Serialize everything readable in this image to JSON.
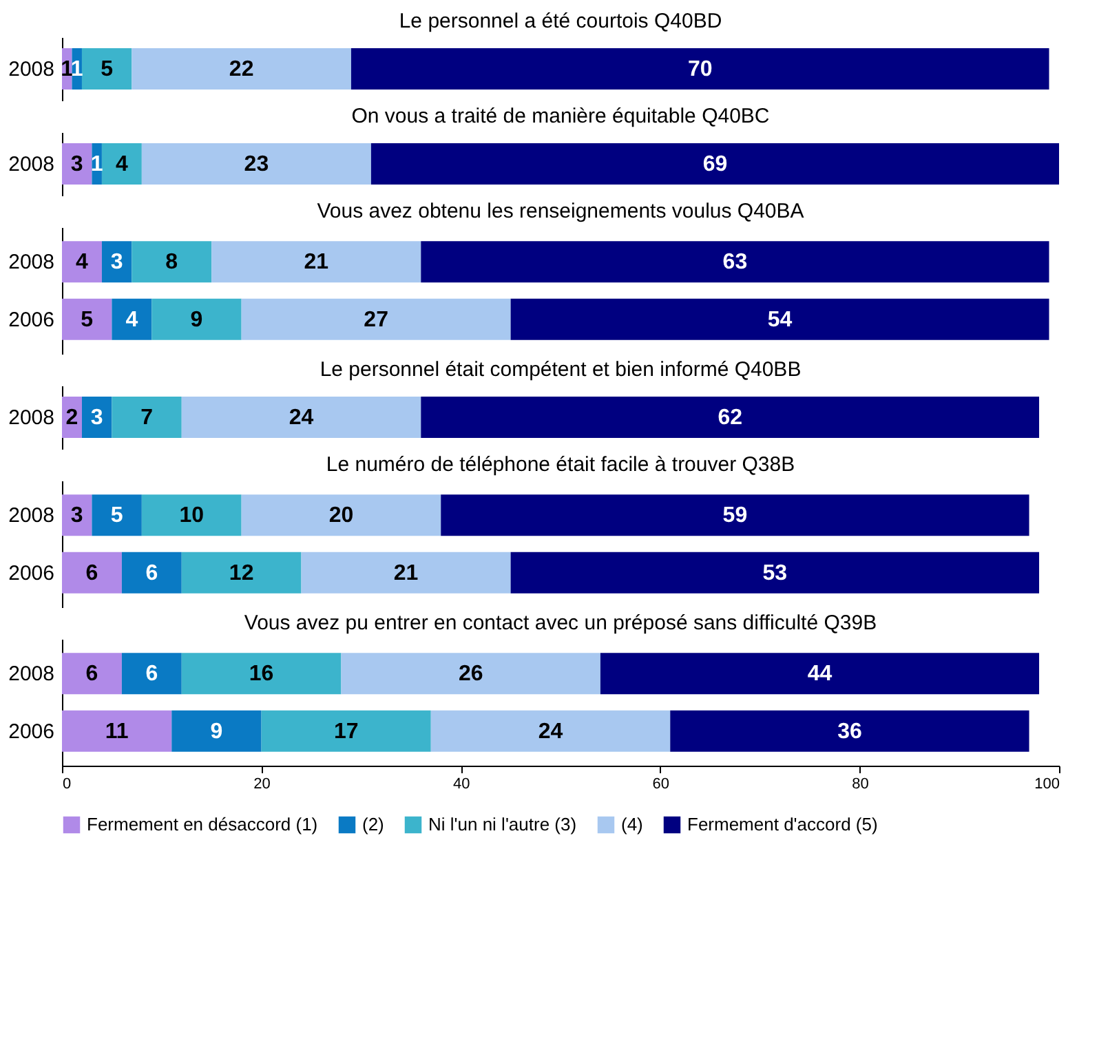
{
  "chart_data": [
    {
      "type": "bar",
      "orientation": "horizontal",
      "stacked": true,
      "title": "Le personnel a été courtois Q40BD",
      "categories": [
        "2008"
      ],
      "xlim": [
        0,
        100
      ],
      "xticks": [
        0,
        20,
        40,
        60,
        80,
        100
      ],
      "tick_labels": "y",
      "data_labels": true,
      "grid": false,
      "series": [
        {
          "color": "#b08ae8",
          "values": [
            1
          ]
        },
        {
          "color": "#0a7ac4",
          "values": [
            1
          ]
        },
        {
          "color": "#3cb4cc",
          "values": [
            5
          ]
        },
        {
          "color": "#a8c8f0",
          "values": [
            22
          ]
        },
        {
          "color": "#000080",
          "values": [
            70
          ]
        }
      ]
    },
    {
      "type": "bar",
      "orientation": "horizontal",
      "stacked": true,
      "title": "On vous a traité de manière équitable Q40BC",
      "categories": [
        "2008"
      ],
      "xlim": [
        0,
        100
      ],
      "xticks": [
        0,
        20,
        40,
        60,
        80,
        100
      ],
      "tick_labels": "y",
      "data_labels": true,
      "grid": false,
      "series": [
        {
          "color": "#b08ae8",
          "values": [
            3
          ]
        },
        {
          "color": "#0a7ac4",
          "values": [
            1
          ]
        },
        {
          "color": "#3cb4cc",
          "values": [
            4
          ]
        },
        {
          "color": "#a8c8f0",
          "values": [
            23
          ]
        },
        {
          "color": "#000080",
          "values": [
            69
          ]
        }
      ]
    },
    {
      "type": "bar",
      "orientation": "horizontal",
      "stacked": true,
      "title": "Vous avez obtenu les renseignements voulus Q40BA",
      "categories": [
        "2008",
        "2006"
      ],
      "xlim": [
        0,
        100
      ],
      "xticks": [
        0,
        20,
        40,
        60,
        80,
        100
      ],
      "tick_labels": "y",
      "data_labels": true,
      "grid": false,
      "series": [
        {
          "color": "#b08ae8",
          "values": [
            4,
            5
          ]
        },
        {
          "color": "#0a7ac4",
          "values": [
            3,
            4
          ]
        },
        {
          "color": "#3cb4cc",
          "values": [
            8,
            9
          ]
        },
        {
          "color": "#a8c8f0",
          "values": [
            21,
            27
          ]
        },
        {
          "color": "#000080",
          "values": [
            63,
            54
          ]
        }
      ]
    },
    {
      "type": "bar",
      "orientation": "horizontal",
      "stacked": true,
      "title": "Le personnel était compétent et bien informé Q40BB",
      "categories": [
        "2008"
      ],
      "xlim": [
        0,
        100
      ],
      "xticks": [
        0,
        20,
        40,
        60,
        80,
        100
      ],
      "tick_labels": "y",
      "data_labels": true,
      "grid": false,
      "series": [
        {
          "color": "#b08ae8",
          "values": [
            2
          ]
        },
        {
          "color": "#0a7ac4",
          "values": [
            3
          ]
        },
        {
          "color": "#3cb4cc",
          "values": [
            7
          ]
        },
        {
          "color": "#a8c8f0",
          "values": [
            24
          ]
        },
        {
          "color": "#000080",
          "values": [
            62
          ]
        }
      ]
    },
    {
      "type": "bar",
      "orientation": "horizontal",
      "stacked": true,
      "title": "Le numéro de téléphone était facile à trouver Q38B",
      "categories": [
        "2008",
        "2006"
      ],
      "xlim": [
        0,
        100
      ],
      "xticks": [
        0,
        20,
        40,
        60,
        80,
        100
      ],
      "tick_labels": "y",
      "data_labels": true,
      "grid": false,
      "series": [
        {
          "color": "#b08ae8",
          "values": [
            3,
            6
          ]
        },
        {
          "color": "#0a7ac4",
          "values": [
            5,
            6
          ]
        },
        {
          "color": "#3cb4cc",
          "values": [
            10,
            12
          ]
        },
        {
          "color": "#a8c8f0",
          "values": [
            20,
            21
          ]
        },
        {
          "color": "#000080",
          "values": [
            59,
            53
          ]
        }
      ]
    },
    {
      "type": "bar",
      "orientation": "horizontal",
      "stacked": true,
      "title": "Vous avez pu entrer en contact avec un préposé sans difficulté Q39B",
      "categories": [
        "2008",
        "2006"
      ],
      "xlim": [
        0,
        100
      ],
      "xticks": [
        0,
        20,
        40,
        60,
        80,
        100
      ],
      "data_labels": true,
      "grid": false,
      "legend": "bottom",
      "series": [
        {
          "name": "Fermement en désaccord (1)",
          "color": "#b08ae8",
          "values": [
            6,
            11
          ]
        },
        {
          "name": "(2)",
          "color": "#0a7ac4",
          "values": [
            6,
            9
          ]
        },
        {
          "name": "Ni l'un ni l'autre (3)",
          "color": "#3cb4cc",
          "values": [
            16,
            17
          ]
        },
        {
          "name": "(4)",
          "color": "#a8c8f0",
          "values": [
            26,
            24
          ]
        },
        {
          "name": "Fermement d'accord (5)",
          "color": "#000080",
          "values": [
            44,
            36
          ]
        }
      ]
    }
  ]
}
